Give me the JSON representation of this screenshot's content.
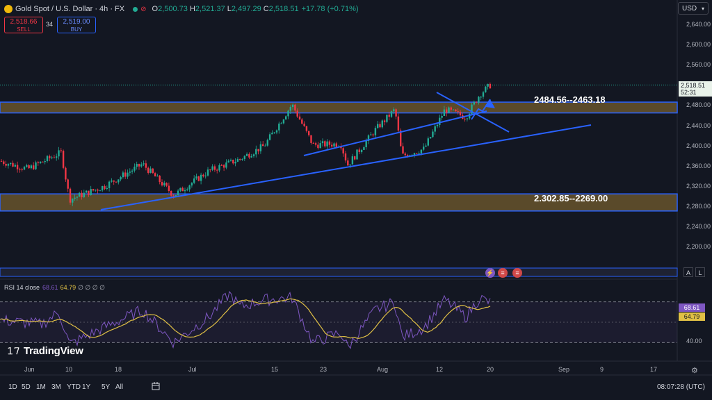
{
  "header": {
    "symbol": "Gold Spot / U.S. Dollar · 4h · FX",
    "ohlc": {
      "o": "2,500.73",
      "h": "2,521.37",
      "l": "2,497.29",
      "c": "2,518.51"
    },
    "change": "+17.78 (+0.71%)",
    "sell_price": "2,518.66",
    "sell_label": "SELL",
    "buy_price": "2,519.00",
    "buy_label": "BUY",
    "spread": "34",
    "currency": "USD"
  },
  "price_axis": [
    "2,640.00",
    "2,600.00",
    "2,560.00",
    "2,520.00",
    "2,480.00",
    "2,440.00",
    "2,400.00",
    "2,360.00",
    "2,320.00",
    "2,280.00",
    "2,240.00",
    "2,200.00"
  ],
  "current_price": {
    "price": "2,518.51",
    "countdown": "52:31"
  },
  "zones": [
    {
      "label": "2484.56--2463.18"
    },
    {
      "label": "2.302.85--2269.00"
    }
  ],
  "rsi": {
    "title": "RSI 14 close",
    "rsi_value": "68.61",
    "ma_value": "64.79",
    "zeros": "∅ ∅ ∅ ∅",
    "level_label": "40.00"
  },
  "time_axis": [
    "Jun",
    "10",
    "18",
    "Jul",
    "15",
    "23",
    "Aug",
    "12",
    "20",
    "Sep",
    "9",
    "17"
  ],
  "timeframes": [
    "1D",
    "5D",
    "1M",
    "3M",
    "YTD",
    "1Y",
    "5Y",
    "All"
  ],
  "clock": "08:07:28 (UTC)",
  "brand": "TradingView",
  "scale_buttons": {
    "auto": "A",
    "log": "L"
  },
  "colors": {
    "background": "#131722",
    "up": "#22ab94",
    "down": "#f23645",
    "trendline": "#2962ff",
    "zone": "#5a4a2a",
    "rsi": "#7e57c2",
    "rsi_ma": "#e0c045"
  },
  "chart_data": {
    "type": "candlestick",
    "price_range": [
      2200,
      2640
    ],
    "rsi_range": [
      20,
      80
    ],
    "zones": [
      [
        2463.18,
        2484.56
      ],
      [
        2269.0,
        2302.85
      ]
    ],
    "last_close": 2518.51
  }
}
